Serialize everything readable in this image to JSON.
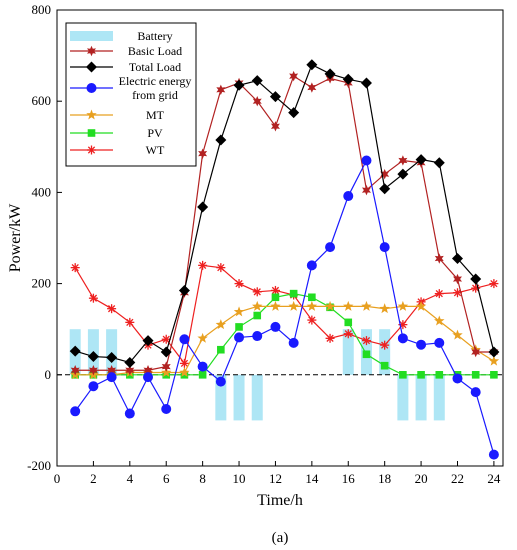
{
  "chart_data": {
    "type": "line",
    "title": "",
    "xlabel": "Time/h",
    "ylabel": "Power/kW",
    "caption": "(a)",
    "xlim": [
      0,
      24.5
    ],
    "ylim": [
      -200,
      800
    ],
    "xticks": [
      "0",
      "2",
      "4",
      "6",
      "8",
      "10",
      "12",
      "14",
      "16",
      "18",
      "20",
      "22",
      "24"
    ],
    "yticks": [
      "-200",
      "0",
      "200",
      "400",
      "600",
      "800"
    ],
    "grid": false,
    "legend_position": "top-left",
    "x": [
      1,
      2,
      3,
      4,
      5,
      6,
      7,
      8,
      9,
      10,
      11,
      12,
      13,
      14,
      15,
      16,
      17,
      18,
      19,
      20,
      21,
      22,
      23,
      24
    ],
    "battery": {
      "name": "Battery",
      "color": "#aee6f5",
      "values": [
        100,
        100,
        100,
        0,
        0,
        0,
        0,
        0,
        -100,
        -100,
        -100,
        0,
        0,
        0,
        0,
        100,
        100,
        100,
        -100,
        -100,
        -100,
        0,
        0,
        0
      ]
    },
    "series": [
      {
        "name": "Basic Load",
        "color": "#b22222",
        "marker": "star6",
        "values": [
          10,
          10,
          10,
          10,
          10,
          18,
          180,
          485,
          625,
          640,
          600,
          545,
          655,
          630,
          650,
          640,
          405,
          440,
          470,
          465,
          255,
          210,
          50,
          50
        ]
      },
      {
        "name": "Total Load",
        "color": "#000000",
        "marker": "diamond",
        "values": [
          52,
          40,
          38,
          27,
          75,
          50,
          185,
          368,
          515,
          635,
          645,
          610,
          575,
          680,
          660,
          648,
          640,
          408,
          440,
          472,
          465,
          255,
          210,
          50
        ]
      },
      {
        "name": "Electric energy from grid",
        "color": "#1a1aff",
        "marker": "circle",
        "values": [
          -80,
          -25,
          -5,
          -85,
          -5,
          -75,
          78,
          18,
          -15,
          82,
          85,
          105,
          70,
          240,
          280,
          392,
          470,
          280,
          80,
          66,
          70,
          -8,
          -38,
          -175
        ]
      },
      {
        "name": "MT",
        "color": "#e8a020",
        "marker": "star5",
        "values": [
          0,
          0,
          0,
          5,
          5,
          5,
          5,
          80,
          110,
          138,
          150,
          150,
          150,
          150,
          150,
          150,
          150,
          145,
          150,
          150,
          118,
          87,
          55,
          30
        ]
      },
      {
        "name": "PV",
        "color": "#22dd22",
        "marker": "square",
        "values": [
          0,
          0,
          0,
          0,
          0,
          0,
          0,
          0,
          55,
          105,
          130,
          170,
          178,
          170,
          148,
          115,
          45,
          20,
          0,
          0,
          0,
          0,
          0,
          0
        ]
      },
      {
        "name": "WT",
        "color": "#ee2020",
        "marker": "asterisk",
        "values": [
          235,
          168,
          145,
          115,
          65,
          78,
          25,
          240,
          235,
          200,
          182,
          185,
          175,
          120,
          80,
          90,
          75,
          65,
          110,
          160,
          178,
          180,
          190,
          200
        ]
      }
    ],
    "legend_labels": [
      "Battery",
      "Basic Load",
      "Total Load",
      "Electric energy",
      "from grid",
      "MT",
      "PV",
      "WT"
    ]
  }
}
